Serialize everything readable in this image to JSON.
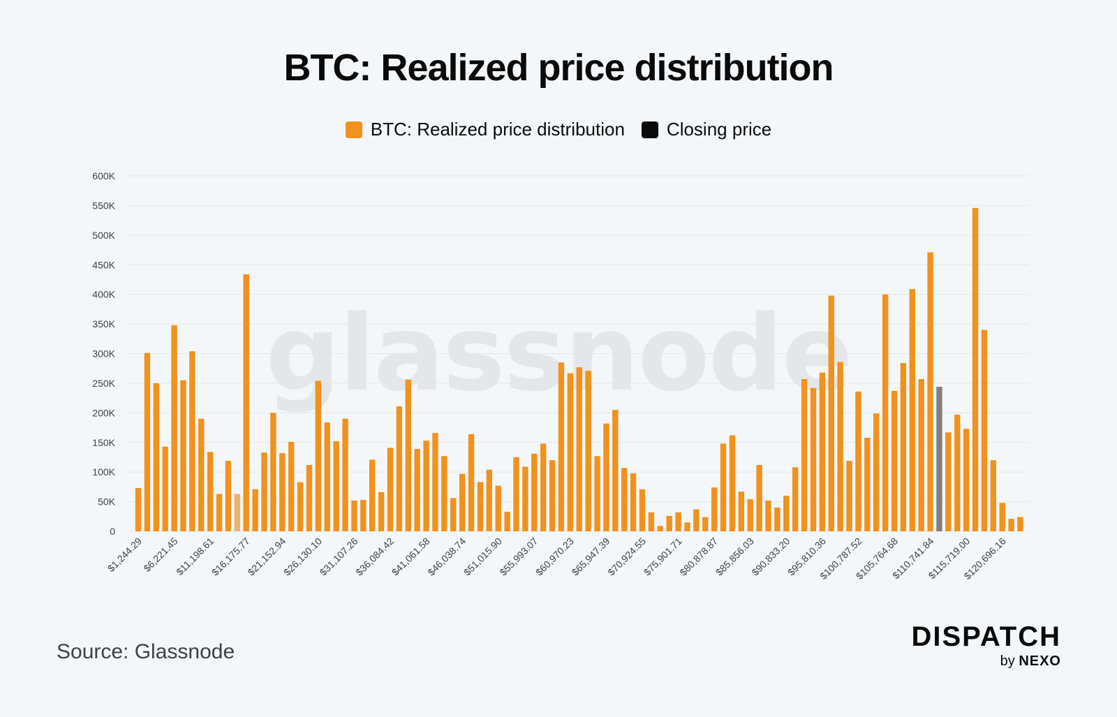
{
  "chart_data": {
    "type": "bar",
    "title": "BTC: Realized price distribution",
    "legend": [
      {
        "label": "BTC: Realized price distribution",
        "color": "#f0921e"
      },
      {
        "label": "Closing price",
        "color": "#0a0a0a"
      }
    ],
    "legend_position": "top-center",
    "ylim": [
      0,
      600000
    ],
    "yticks": [
      0,
      50000,
      100000,
      150000,
      200000,
      250000,
      300000,
      350000,
      400000,
      450000,
      500000,
      550000,
      600000
    ],
    "ytick_labels": [
      "0",
      "50K",
      "100K",
      "150K",
      "200K",
      "250K",
      "300K",
      "350K",
      "400K",
      "450K",
      "500K",
      "550K",
      "600K"
    ],
    "grid": true,
    "xtick_labels": [
      "$1,244.29",
      "$6,221.45",
      "$11,198.61",
      "$16,175.77",
      "$21,152.94",
      "$26,130.10",
      "$31,107.26",
      "$36,084.42",
      "$41,061.58",
      "$46,038.74",
      "$51,015.90",
      "$55,993.07",
      "$60,970.23",
      "$65,947.39",
      "$70,924.55",
      "$75,901.71",
      "$80,878.87",
      "$85,856.03",
      "$90,833.20",
      "$95,810.36",
      "$100,787.52",
      "$105,764.68",
      "$110,741.84",
      "$115,719.00",
      "$120,696.16"
    ],
    "values": [
      73000,
      301000,
      250000,
      143000,
      348000,
      255000,
      304000,
      190000,
      134000,
      63000,
      119000,
      63000,
      434000,
      71000,
      133000,
      200000,
      132000,
      151000,
      83000,
      112000,
      254000,
      184000,
      152000,
      190000,
      52000,
      53000,
      121000,
      66000,
      141000,
      211000,
      256000,
      139000,
      153000,
      166000,
      127000,
      56000,
      97000,
      164000,
      83000,
      104000,
      77000,
      33000,
      125000,
      109000,
      131000,
      148000,
      120000,
      285000,
      267000,
      277000,
      271000,
      127000,
      182000,
      205000,
      107000,
      98000,
      71000,
      32000,
      9000,
      26000,
      32000,
      15000,
      37000,
      24000,
      74000,
      148000,
      162000,
      67000,
      54000,
      112000,
      52000,
      40000,
      60000,
      108000,
      257000,
      242000,
      268000,
      398000,
      286000,
      119000,
      236000,
      158000,
      199000,
      400000,
      237000,
      284000,
      409000,
      257000,
      471000,
      244000,
      167000,
      197000,
      173000,
      546000,
      340000,
      120000,
      48000,
      21000,
      24000
    ],
    "highlight_light_index": 11,
    "highlight_light_color": "#ecb170",
    "closing_price_index": 89,
    "closing_price_color": "#808080",
    "bar_color": "#f0921e",
    "grid_color": "#e3e6ea",
    "axis_text_color": "#3e4246"
  },
  "watermark": "glassnode",
  "source": "Source: Glassnode",
  "brand": {
    "name": "DISPATCH",
    "by": "by",
    "company": "NEXO"
  }
}
